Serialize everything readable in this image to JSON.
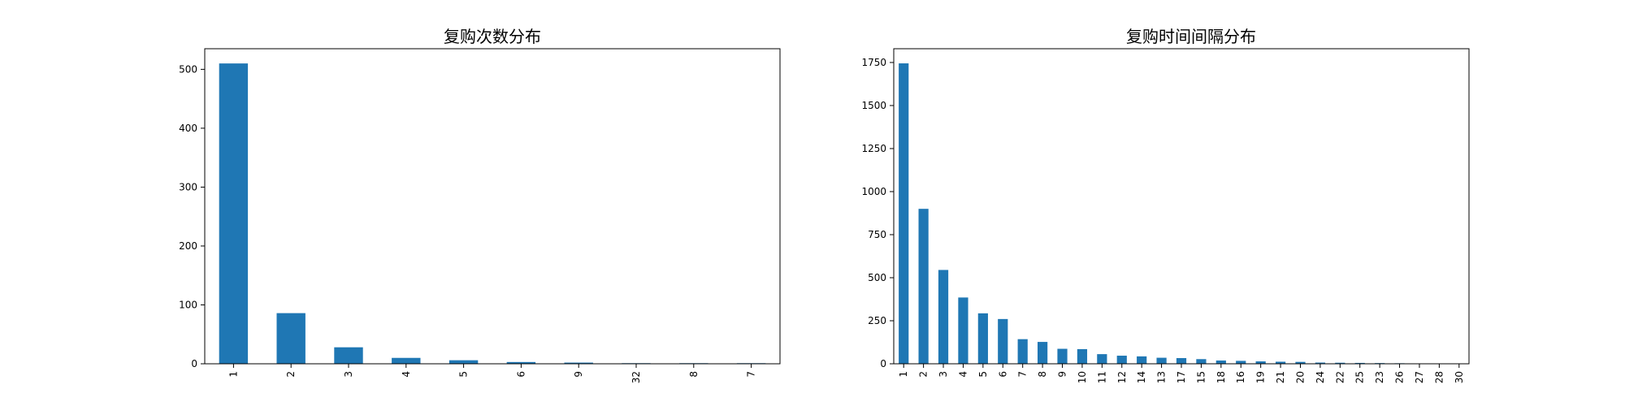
{
  "chart_data": [
    {
      "type": "bar",
      "title": "复购次数分布",
      "xlabel": "",
      "ylabel": "",
      "categories": [
        "1",
        "2",
        "3",
        "4",
        "5",
        "6",
        "9",
        "32",
        "8",
        "7"
      ],
      "values": [
        510,
        86,
        28,
        10,
        6,
        3,
        2,
        1,
        1,
        1
      ],
      "ylim": [
        0,
        535
      ],
      "yticks": [
        0,
        100,
        200,
        300,
        400,
        500
      ],
      "color": "#1f77b4",
      "grid": false,
      "legend": "none"
    },
    {
      "type": "bar",
      "title": "复购时间间隔分布",
      "xlabel": "",
      "ylabel": "",
      "categories": [
        "1",
        "2",
        "3",
        "4",
        "5",
        "6",
        "7",
        "8",
        "9",
        "10",
        "11",
        "12",
        "14",
        "13",
        "17",
        "15",
        "18",
        "16",
        "19",
        "21",
        "20",
        "24",
        "22",
        "25",
        "23",
        "26",
        "27",
        "28",
        "30"
      ],
      "values": [
        1745,
        900,
        545,
        385,
        293,
        260,
        143,
        127,
        87,
        85,
        56,
        47,
        43,
        35,
        33,
        27,
        19,
        17,
        14,
        12,
        11,
        7,
        6,
        5,
        4,
        3,
        2,
        1,
        1
      ],
      "ylim": [
        0,
        1830
      ],
      "yticks": [
        0,
        250,
        500,
        750,
        1000,
        1250,
        1500,
        1750
      ],
      "color": "#1f77b4",
      "grid": false,
      "legend": "none"
    }
  ]
}
